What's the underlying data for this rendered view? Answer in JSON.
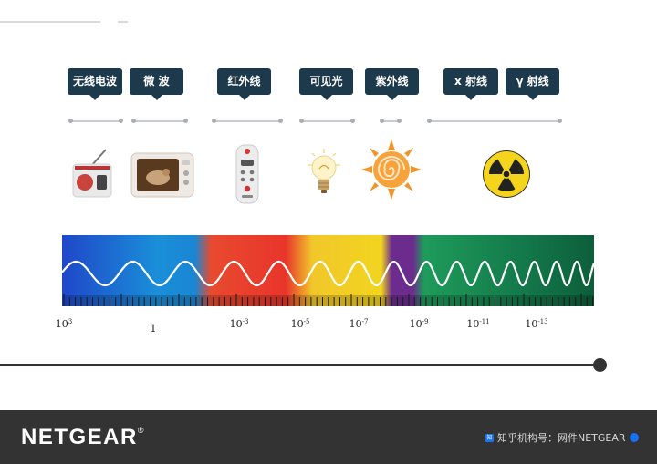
{
  "bands": [
    {
      "id": "radio",
      "label": "无线电波",
      "icon": "radio-icon"
    },
    {
      "id": "microwave",
      "label": "微 波",
      "icon": "microwave-oven-icon"
    },
    {
      "id": "infrared",
      "label": "红外线",
      "icon": "remote-control-icon"
    },
    {
      "id": "visible",
      "label": "可见光",
      "icon": "light-bulb-icon"
    },
    {
      "id": "ultraviolet",
      "label": "紫外线",
      "icon": "sun-icon"
    },
    {
      "id": "xray",
      "label": "x 射线",
      "icon": null
    },
    {
      "id": "gamma",
      "label": "γ 射线",
      "icon": "radiation-icon"
    }
  ],
  "scale": {
    "labels": [
      {
        "base": "10",
        "exp": "3"
      },
      {
        "base": "1",
        "exp": ""
      },
      {
        "base": "10",
        "exp": "-3"
      },
      {
        "base": "10",
        "exp": "-5"
      },
      {
        "base": "10",
        "exp": "-7"
      },
      {
        "base": "10",
        "exp": "-9"
      },
      {
        "base": "10",
        "exp": "-11"
      },
      {
        "base": "10",
        "exp": "-13"
      }
    ]
  },
  "colors": {
    "tag": "#1d3a4c",
    "spectrum": [
      "#1f47c9",
      "#1a8fd8",
      "#e8352b",
      "#f2d51f",
      "#6b2c8e",
      "#1e9b5a",
      "#0d5e3a"
    ]
  },
  "footer": {
    "brand": "NETGEAR",
    "registered": "®",
    "zhihu_logo": "知",
    "source": "知乎机构号：网件NETGEAR"
  }
}
